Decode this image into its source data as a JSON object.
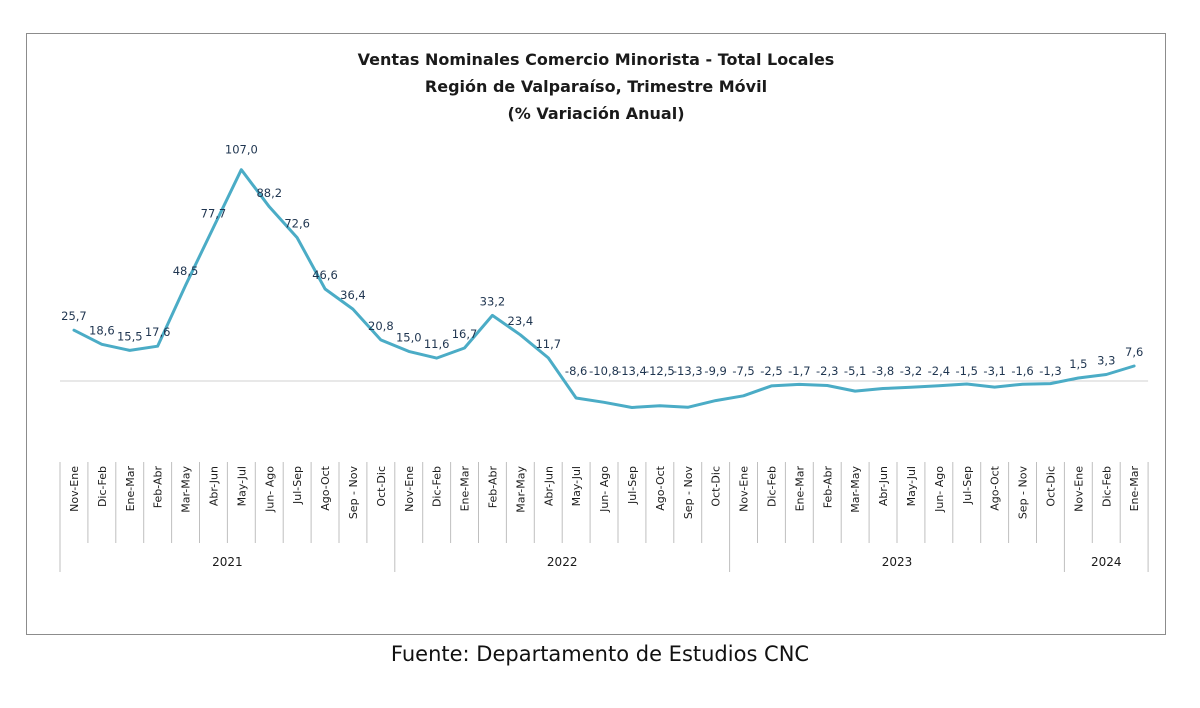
{
  "chart_data": {
    "type": "line",
    "title": [
      "Ventas Nominales Comercio Minorista - Total Locales",
      "Región de Valparaíso, Trimestre Móvil",
      "(% Variación Anual)"
    ],
    "categories": [
      "Nov-Ene",
      "Dic-Feb",
      "Ene-Mar",
      "Feb-Abr",
      "Mar-May",
      "Abr-Jun",
      "May-Jul",
      "Jun- Ago",
      "Jul-Sep",
      "Ago-Oct",
      "Sep - Nov",
      "Oct-Dic",
      "Nov-Ene",
      "Dic-Feb",
      "Ene-Mar",
      "Feb-Abr",
      "Mar-May",
      "Abr-Jun",
      "May-Jul",
      "Jun- Ago",
      "Jul-Sep",
      "Ago-Oct",
      "Sep - Nov",
      "Oct-Dic",
      "Nov-Ene",
      "Dic-Feb",
      "Ene-Mar",
      "Feb-Abr",
      "Mar-May",
      "Abr-Jun",
      "May-Jul",
      "Jun- Ago",
      "Jul-Sep",
      "Ago-Oct",
      "Sep - Nov",
      "Oct-Dic",
      "Nov-Ene",
      "Dic-Feb",
      "Ene-Mar"
    ],
    "values": [
      25.7,
      18.6,
      15.5,
      17.6,
      48.5,
      77.7,
      107.0,
      88.2,
      72.6,
      46.6,
      36.4,
      20.8,
      15.0,
      11.6,
      16.7,
      33.2,
      23.4,
      11.7,
      -8.6,
      -10.8,
      -13.4,
      -12.5,
      -13.3,
      -9.9,
      -7.5,
      -2.5,
      -1.7,
      -2.3,
      -5.1,
      -3.8,
      -3.2,
      -2.4,
      -1.5,
      -3.1,
      -1.6,
      -1.3,
      1.5,
      3.3,
      7.6
    ],
    "data_labels": [
      "25,7",
      "18,6",
      "15,5",
      "17,6",
      "48,5",
      "77,7",
      "107,0",
      "88,2",
      "72,6",
      "46,6",
      "36,4",
      "20,8",
      "15,0",
      "11,6",
      "16,7",
      "33,2",
      "23,4",
      "11,7",
      "-8,6",
      "-10,8",
      "-13,4",
      "-12,5",
      "-13,3",
      "-9,9",
      "-7,5",
      "-2,5",
      "-1,7",
      "-2,3",
      "-5,1",
      "-3,8",
      "-3,2",
      "-2,4",
      "-1,5",
      "-3,1",
      "-1,6",
      "-1,3",
      "1,5",
      "3,3",
      "7,6"
    ],
    "year_groups": [
      {
        "label": "2021",
        "count": 12
      },
      {
        "label": "2022",
        "count": 12
      },
      {
        "label": "2023",
        "count": 12
      },
      {
        "label": "2024",
        "count": 3
      }
    ],
    "line_color": "#4bacc6",
    "grid": false,
    "legend": "none"
  },
  "source": "Fuente: Departamento de Estudios CNC"
}
